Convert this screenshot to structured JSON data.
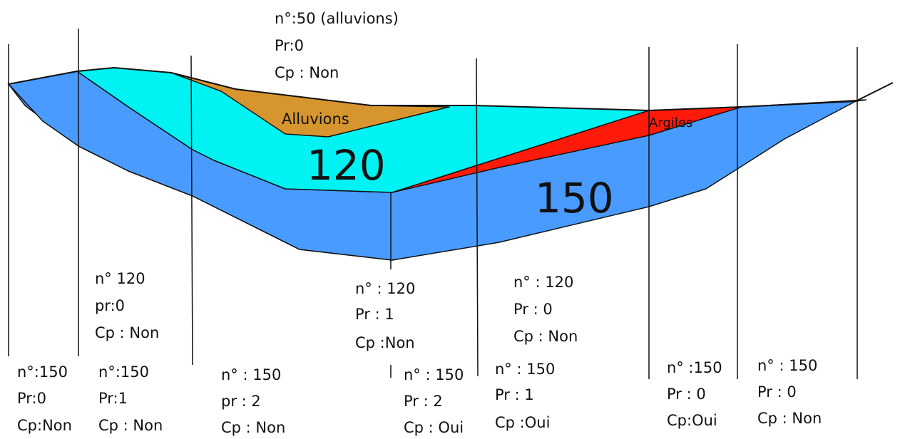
{
  "colors": {
    "layer_150": "#4a9bff",
    "layer_120": "#00f2f2",
    "alluvions": "#d6952e",
    "argiles": "#ff1a0a",
    "line": "#111111"
  },
  "layers": {
    "l120": "120",
    "l150": "150",
    "alluvions": "Alluvions",
    "argiles": "Argiles"
  },
  "annotations": {
    "top_center": [
      "n°:50 (alluvions)",
      "Pr:0",
      "Cp : Non"
    ],
    "upper_left": [
      "n° 120",
      "pr:0",
      "Cp : Non"
    ],
    "upper_center": [
      "n° : 120",
      "Pr : 1",
      "Cp :Non"
    ],
    "upper_right": [
      "n° : 120",
      "Pr : 0",
      "Cp : Non"
    ],
    "bottom_1": [
      "n°:150",
      "Pr:0",
      "Cp:Non"
    ],
    "bottom_2": [
      "n°:150",
      "Pr:1",
      "Cp : Non"
    ],
    "bottom_3": [
      "n° : 150",
      "pr : 2",
      "Cp : Non"
    ],
    "bottom_4": [
      "n° : 150",
      "Pr : 2",
      "Cp : Oui"
    ],
    "bottom_5": [
      "n° : 150",
      "Pr : 1",
      "Cp :Oui"
    ],
    "bottom_6": [
      "n° :150",
      "Pr : 0",
      "Cp:Oui"
    ],
    "bottom_7": [
      "n° : 150",
      "Pr : 0",
      "Cp : Non"
    ]
  }
}
